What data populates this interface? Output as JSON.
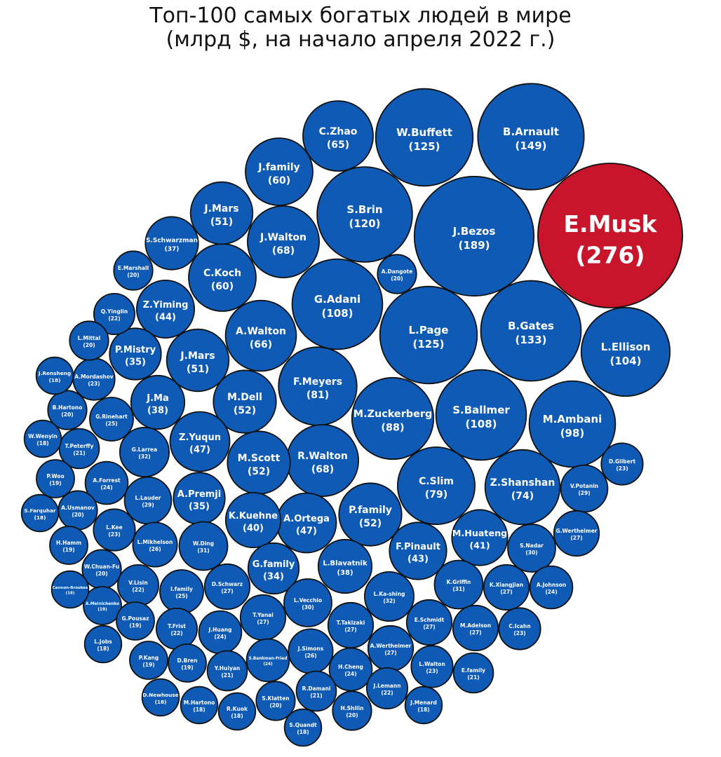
{
  "title_line1": "Топ-100 самых богатых людей в мире",
  "title_line2": "(млрд $, на начало апреля 2022 г.)",
  "colors": {
    "bubble": "#0f5ab5",
    "highlight": "#c8152c",
    "stroke": "#111111",
    "text": "#ffffff"
  },
  "chart_data": {
    "type": "bubble",
    "title": "Топ-100 самых богатых людей в мире (млрд $, на начало апреля 2022 г.)",
    "unit": "млрд $",
    "highlight": "E.Musk",
    "items": [
      {
        "name": "E.Musk",
        "value": 276
      },
      {
        "name": "J.Bezos",
        "value": 189
      },
      {
        "name": "B.Arnault",
        "value": 149
      },
      {
        "name": "B.Gates",
        "value": 133
      },
      {
        "name": "W.Buffett",
        "value": 125
      },
      {
        "name": "L.Page",
        "value": 125
      },
      {
        "name": "S.Brin",
        "value": 120
      },
      {
        "name": "G.Adani",
        "value": 108
      },
      {
        "name": "S.Ballmer",
        "value": 108
      },
      {
        "name": "L.Ellison",
        "value": 104
      },
      {
        "name": "M.Ambani",
        "value": 98
      },
      {
        "name": "M.Zuckerberg",
        "value": 88
      },
      {
        "name": "F.Meyers",
        "value": 81
      },
      {
        "name": "C.Slim",
        "value": 79
      },
      {
        "name": "Z.Shanshan",
        "value": 74
      },
      {
        "name": "J.Walton",
        "value": 68
      },
      {
        "name": "R.Walton",
        "value": 68
      },
      {
        "name": "A.Walton",
        "value": 66
      },
      {
        "name": "C.Zhao",
        "value": 65
      },
      {
        "name": "J.family",
        "value": 60
      },
      {
        "name": "C.Koch",
        "value": 60
      },
      {
        "name": "M.Dell",
        "value": 52
      },
      {
        "name": "M.Scott",
        "value": 52
      },
      {
        "name": "P.family",
        "value": 52
      },
      {
        "name": "J.Mars",
        "value": 51
      },
      {
        "name": "J.Mars",
        "value": 51
      },
      {
        "name": "Z.Yuqun",
        "value": 47
      },
      {
        "name": "A.Ortega",
        "value": 47
      },
      {
        "name": "Z.Yiming",
        "value": 44
      },
      {
        "name": "F.Pinault",
        "value": 43
      },
      {
        "name": "M.Huateng",
        "value": 41
      },
      {
        "name": "K.Kuehne",
        "value": 40
      },
      {
        "name": "J.Ma",
        "value": 38
      },
      {
        "name": "L.Blavatnik",
        "value": 38
      },
      {
        "name": "S.Schwarzman",
        "value": 37
      },
      {
        "name": "P.Mistry",
        "value": 35
      },
      {
        "name": "A.Premji",
        "value": 35
      },
      {
        "name": "G.family",
        "value": 34
      },
      {
        "name": "G.Larrea",
        "value": 32
      },
      {
        "name": "L.Ka-shing",
        "value": 32
      },
      {
        "name": "W.Ding",
        "value": 31
      },
      {
        "name": "K.Griffin",
        "value": 31
      },
      {
        "name": "L.Vecchio",
        "value": 30
      },
      {
        "name": "S.Nadar",
        "value": 30
      },
      {
        "name": "L.Lauder",
        "value": 29
      },
      {
        "name": "V.Potanin",
        "value": 29
      },
      {
        "name": "D.Schwarz",
        "value": 27
      },
      {
        "name": "T.Yanai",
        "value": 27
      },
      {
        "name": "T.Takizaki",
        "value": 27
      },
      {
        "name": "E.Schmidt",
        "value": 27
      },
      {
        "name": "K.Xiangjian",
        "value": 27
      },
      {
        "name": "G.Wertheimer",
        "value": 27
      },
      {
        "name": "A.Wertheimer",
        "value": 27
      },
      {
        "name": "M.Adelson",
        "value": 27
      },
      {
        "name": "L.Mikhelson",
        "value": 26
      },
      {
        "name": "J.Simons",
        "value": 26
      },
      {
        "name": "G.Rinehart",
        "value": 25
      },
      {
        "name": "I.family",
        "value": 25
      },
      {
        "name": "A.Forrest",
        "value": 24
      },
      {
        "name": "J.Huang",
        "value": 24
      },
      {
        "name": "S.Bankman-Fried",
        "value": 24
      },
      {
        "name": "H.Cheng",
        "value": 24
      },
      {
        "name": "A.Johnson",
        "value": 24
      },
      {
        "name": "A.Mordashov",
        "value": 23
      },
      {
        "name": "L.Kee",
        "value": 23
      },
      {
        "name": "D.Gilbert",
        "value": 23
      },
      {
        "name": "L.Walton",
        "value": 23
      },
      {
        "name": "C.Icahn",
        "value": 23
      },
      {
        "name": "Q.Yinglin",
        "value": 22
      },
      {
        "name": "V.Lisin",
        "value": 22
      },
      {
        "name": "T.Frist",
        "value": 22
      },
      {
        "name": "J.Lemann",
        "value": 22
      },
      {
        "name": "T.Peterffy",
        "value": 21
      },
      {
        "name": "Y.Huiyan",
        "value": 21
      },
      {
        "name": "R.Damani",
        "value": 21
      },
      {
        "name": "E.family",
        "value": 21
      },
      {
        "name": "E.Marshall",
        "value": 20
      },
      {
        "name": "A.Dangote",
        "value": 20
      },
      {
        "name": "L.Mittal",
        "value": 20
      },
      {
        "name": "B.Hartono",
        "value": 20
      },
      {
        "name": "A.Usmanov",
        "value": 20
      },
      {
        "name": "W.Chuan-Fu",
        "value": 20
      },
      {
        "name": "S.Klatten",
        "value": 20
      },
      {
        "name": "H.Shilin",
        "value": 20
      },
      {
        "name": "P.Woo",
        "value": 19
      },
      {
        "name": "H.Hamm",
        "value": 19
      },
      {
        "name": "A.Melnichenko",
        "value": 19
      },
      {
        "name": "G.Pousaz",
        "value": 19
      },
      {
        "name": "P.Kang",
        "value": 19
      },
      {
        "name": "D.Bren",
        "value": 19
      },
      {
        "name": "J.Rensheng",
        "value": 18
      },
      {
        "name": "W.Wenyin",
        "value": 18
      },
      {
        "name": "S.Farquhar",
        "value": 18
      },
      {
        "name": "Cannon-Brookes",
        "value": 18
      },
      {
        "name": "L.Jobs",
        "value": 18
      },
      {
        "name": "D.Newhouse",
        "value": 18
      },
      {
        "name": "M.Hartono",
        "value": 18
      },
      {
        "name": "R.Kuok",
        "value": 18
      },
      {
        "name": "S.Quandt",
        "value": 18
      },
      {
        "name": "J.Menard",
        "value": 18
      }
    ]
  }
}
